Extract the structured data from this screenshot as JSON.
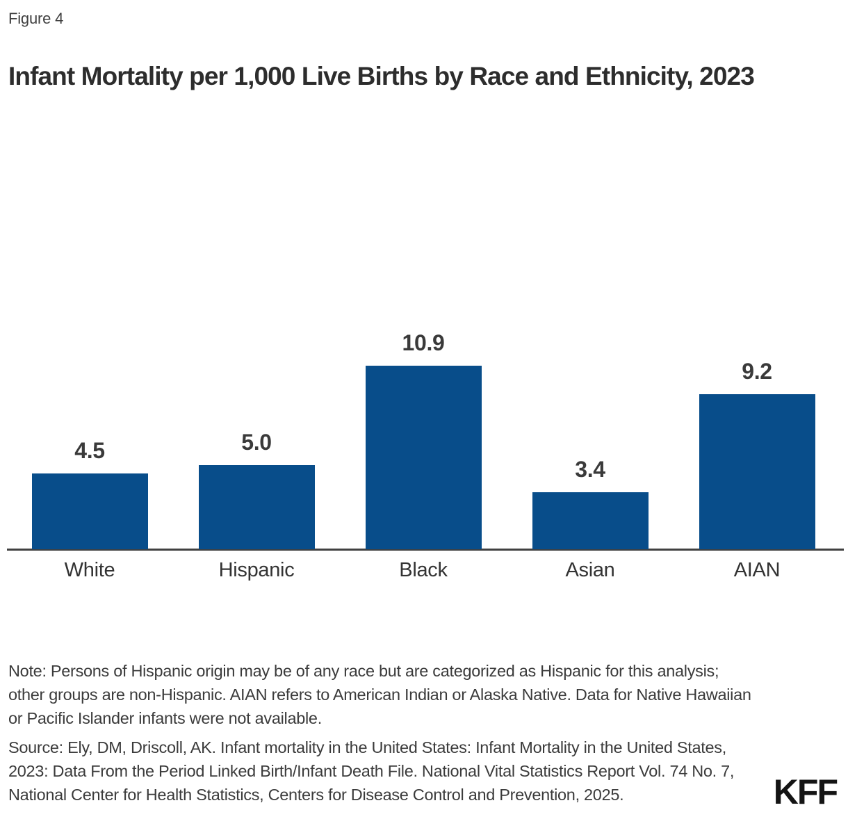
{
  "figure_label": "Figure 4",
  "title": "Infant Mortality per 1,000 Live Births by Race and Ethnicity, 2023",
  "chart_data": {
    "type": "bar",
    "title": "Infant Mortality per 1,000 Live Births by Race and Ethnicity, 2023",
    "categories": [
      "White",
      "Hispanic",
      "Black",
      "Asian",
      "AIAN"
    ],
    "values": [
      4.5,
      5.0,
      10.9,
      3.4,
      9.2
    ],
    "value_labels": [
      "4.5",
      "5.0",
      "10.9",
      "3.4",
      "9.2"
    ],
    "xlabel": "",
    "ylabel": "",
    "ylim": [
      0,
      11.5
    ],
    "grid": false,
    "legend_position": "none",
    "bar_color": "#084d8a",
    "axis_color": "#404040",
    "label_color": "#333333"
  },
  "note": "Note: Persons of Hispanic origin may be of any race but are categorized as Hispanic for this analysis; other groups are non-Hispanic. AIAN refers to American Indian or Alaska Native. Data for Native Hawaiian or Pacific Islander infants were not available.",
  "source": "Source: Ely, DM, Driscoll, AK. Infant mortality in the United States: Infant Mortality in the United States, 2023: Data From the Period Linked Birth/Infant Death File. National Vital Statistics Report Vol. 74 No. 7, National Center for Health Statistics, Centers for Disease Control and Prevention, 2025.",
  "logo": "KFF"
}
